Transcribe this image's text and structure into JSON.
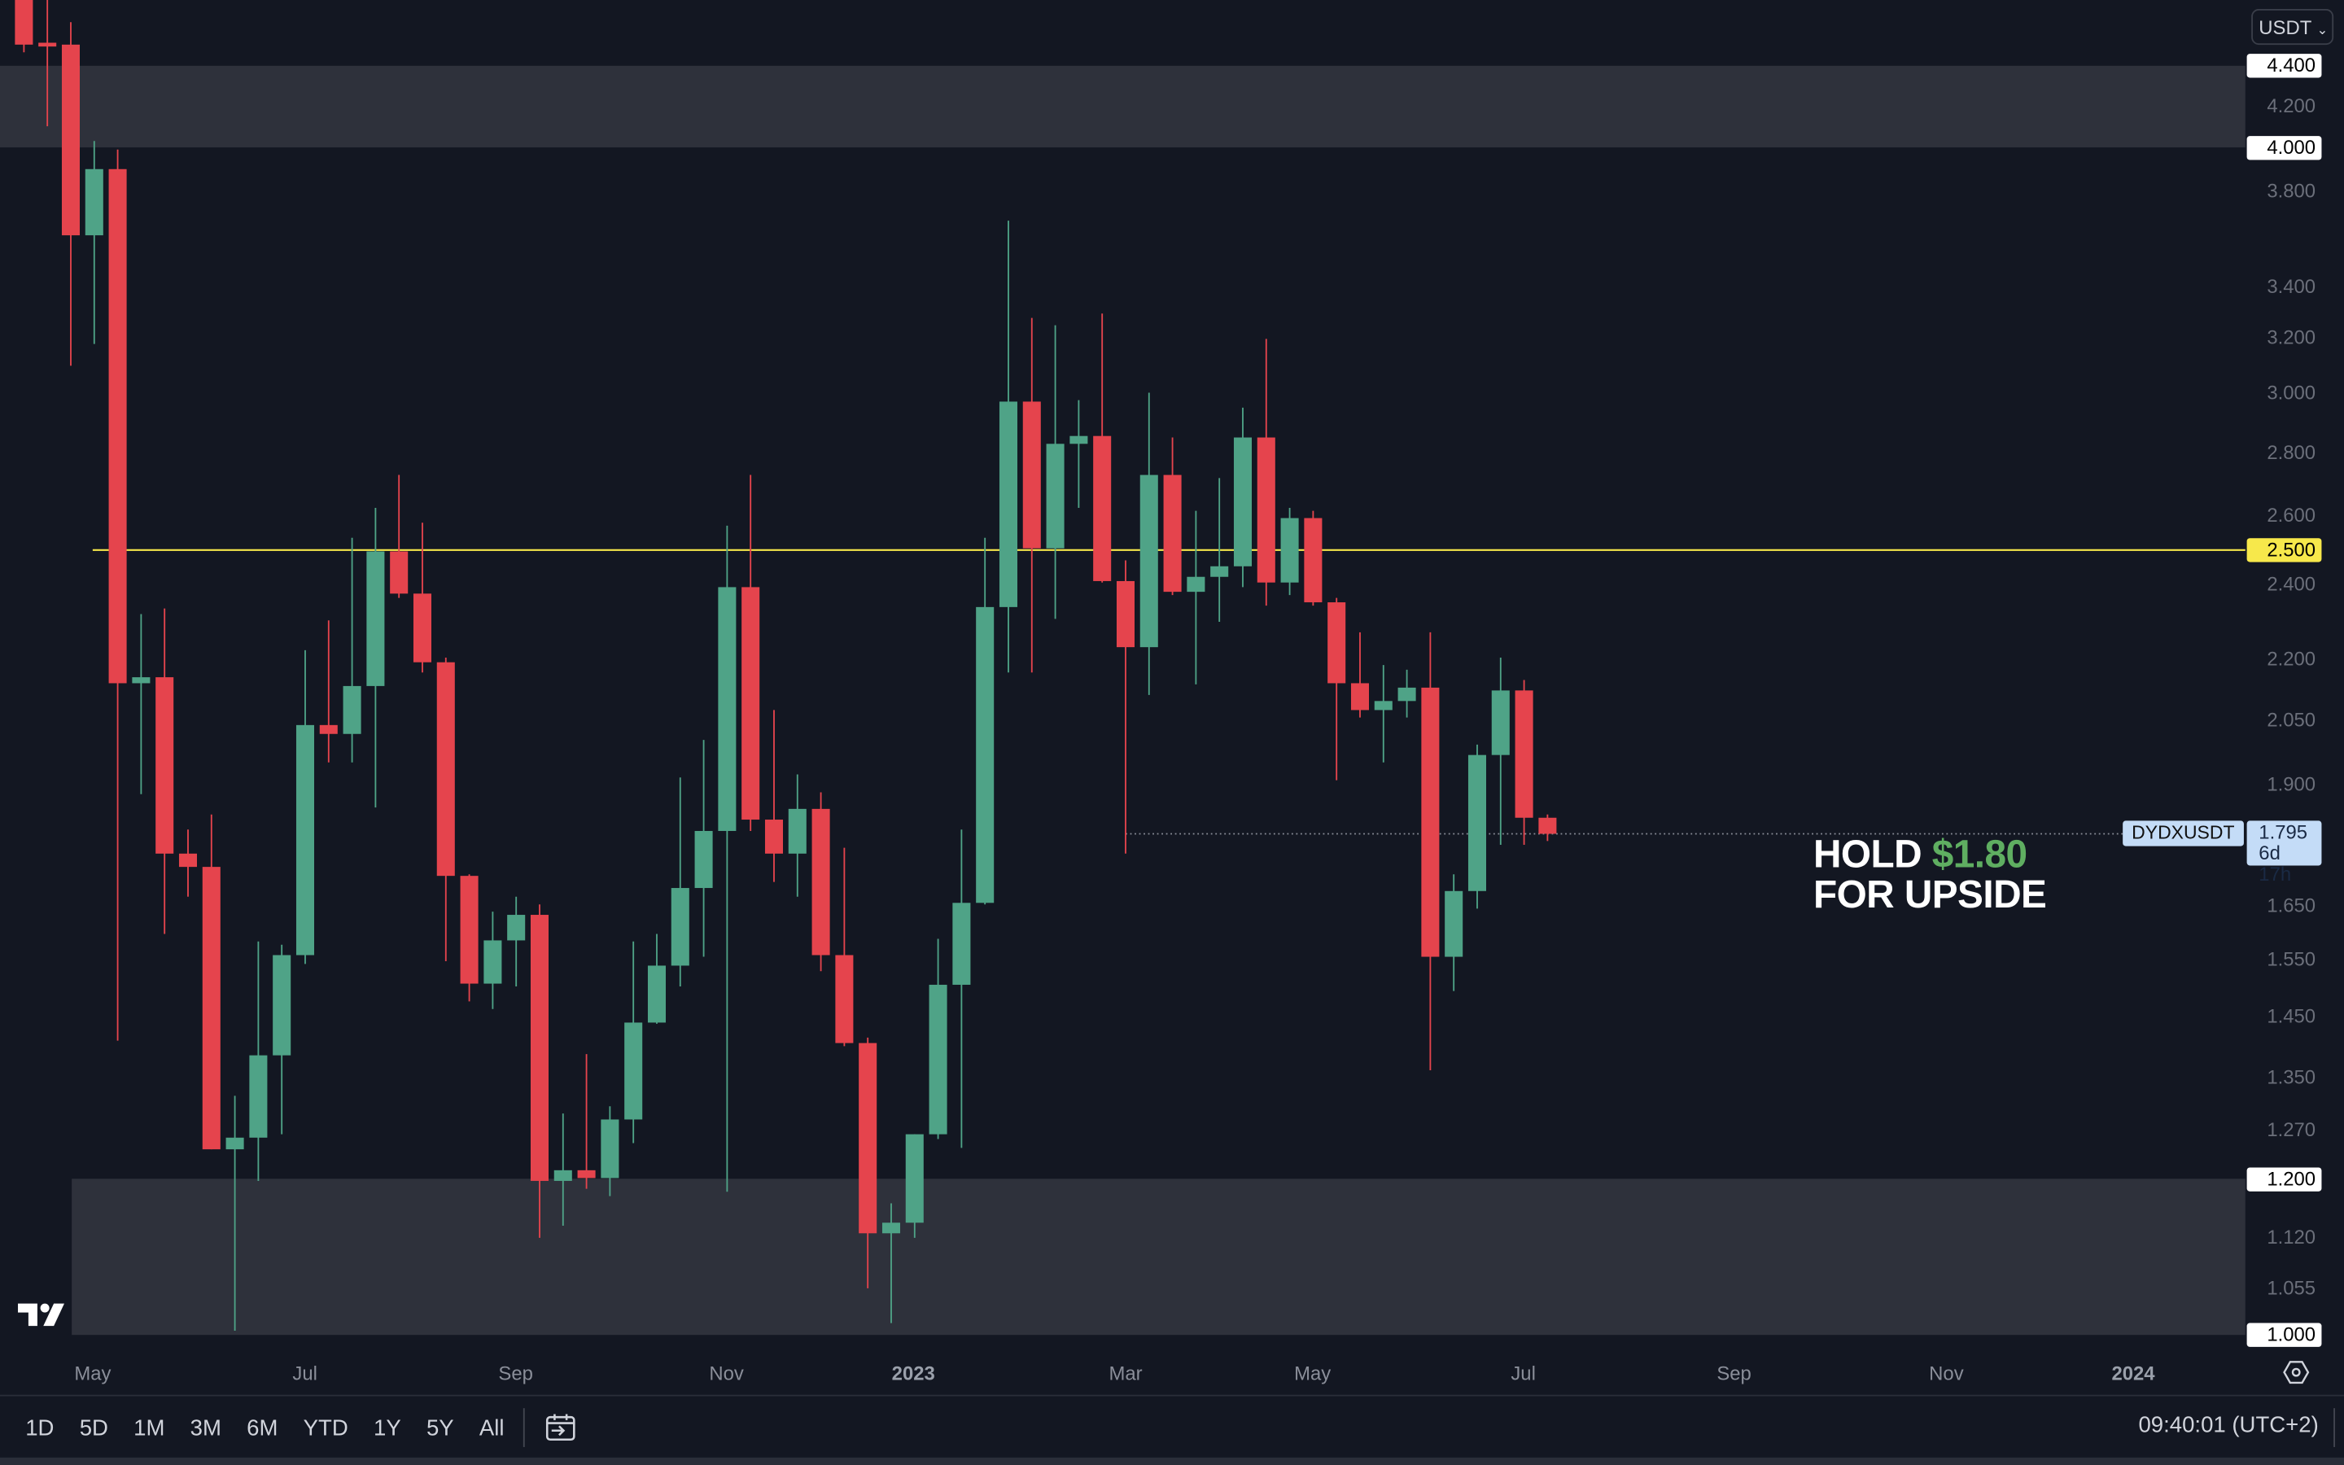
{
  "chart_data": {
    "type": "candlestick",
    "symbol": "DYDXUSDT",
    "currency": "USDT",
    "y_scale": "log",
    "ylim": [
      1.0,
      4.4
    ],
    "colors": {
      "up": "#4fa387",
      "down": "#e5444d",
      "zone": "#2e313b",
      "level": "#f7e84b"
    },
    "y_ticks": [
      {
        "label": "4.400",
        "value": 4.4,
        "style": "highlight"
      },
      {
        "label": "4.200",
        "value": 4.2
      },
      {
        "label": "4.000",
        "value": 4.0,
        "style": "highlight"
      },
      {
        "label": "3.800",
        "value": 3.8
      },
      {
        "label": "3.400",
        "value": 3.4
      },
      {
        "label": "3.200",
        "value": 3.2
      },
      {
        "label": "3.000",
        "value": 3.0
      },
      {
        "label": "2.800",
        "value": 2.8
      },
      {
        "label": "2.600",
        "value": 2.6
      },
      {
        "label": "2.500",
        "value": 2.5,
        "style": "level"
      },
      {
        "label": "2.400",
        "value": 2.4
      },
      {
        "label": "2.200",
        "value": 2.2
      },
      {
        "label": "2.050",
        "value": 2.05
      },
      {
        "label": "1.900",
        "value": 1.9
      },
      {
        "label": "1.650",
        "value": 1.65
      },
      {
        "label": "1.550",
        "value": 1.55
      },
      {
        "label": "1.450",
        "value": 1.45
      },
      {
        "label": "1.350",
        "value": 1.35
      },
      {
        "label": "1.270",
        "value": 1.27
      },
      {
        "label": "1.200",
        "value": 1.2,
        "style": "highlight"
      },
      {
        "label": "1.120",
        "value": 1.12
      },
      {
        "label": "1.055",
        "value": 1.055
      },
      {
        "label": "1.000",
        "value": 1.0,
        "style": "highlight"
      }
    ],
    "x_ticks": [
      {
        "label": "May"
      },
      {
        "label": "Jul"
      },
      {
        "label": "Sep"
      },
      {
        "label": "Nov"
      },
      {
        "label": "2023",
        "bold": true
      },
      {
        "label": "Mar"
      },
      {
        "label": "May"
      },
      {
        "label": "Jul"
      },
      {
        "label": "Sep"
      },
      {
        "label": "Nov"
      },
      {
        "label": "2024",
        "bold": true
      }
    ],
    "current_price": {
      "label": "1.795",
      "value": 1.795,
      "countdown": "6d 17h"
    },
    "level_line": 2.5,
    "zones": [
      {
        "from": 4.0,
        "to": 4.4
      },
      {
        "from": 1.0,
        "to": 1.2
      }
    ],
    "ohlc": [
      [
        4.76,
        4.76,
        4.47,
        4.51
      ],
      [
        4.52,
        4.76,
        4.1,
        4.5
      ],
      [
        4.51,
        4.63,
        3.1,
        3.61
      ],
      [
        3.61,
        4.03,
        3.18,
        3.9
      ],
      [
        3.9,
        3.99,
        1.41,
        2.14
      ],
      [
        2.14,
        2.32,
        1.88,
        2.155
      ],
      [
        2.155,
        2.335,
        1.597,
        1.754
      ],
      [
        1.754,
        1.804,
        1.668,
        1.727
      ],
      [
        1.727,
        1.836,
        1.242,
        1.242
      ],
      [
        1.242,
        1.322,
        1.005,
        1.259
      ],
      [
        1.259,
        1.583,
        1.197,
        1.386
      ],
      [
        1.386,
        1.577,
        1.264,
        1.558
      ],
      [
        1.558,
        2.224,
        1.542,
        2.038
      ],
      [
        2.038,
        2.303,
        1.951,
        2.017
      ],
      [
        2.017,
        2.536,
        1.951,
        2.133
      ],
      [
        2.133,
        2.626,
        1.851,
        2.496
      ],
      [
        2.496,
        2.729,
        2.364,
        2.376
      ],
      [
        2.376,
        2.581,
        2.167,
        2.193
      ],
      [
        2.193,
        2.205,
        1.547,
        1.709
      ],
      [
        1.709,
        1.712,
        1.476,
        1.507
      ],
      [
        1.507,
        1.639,
        1.463,
        1.585
      ],
      [
        1.585,
        1.668,
        1.502,
        1.633
      ],
      [
        1.633,
        1.653,
        1.12,
        1.197
      ],
      [
        1.197,
        1.295,
        1.136,
        1.212
      ],
      [
        1.212,
        1.388,
        1.186,
        1.201
      ],
      [
        1.201,
        1.306,
        1.176,
        1.286
      ],
      [
        1.286,
        1.583,
        1.251,
        1.44
      ],
      [
        1.44,
        1.597,
        1.438,
        1.539
      ],
      [
        1.539,
        1.917,
        1.502,
        1.685
      ],
      [
        1.685,
        2.003,
        1.555,
        1.801
      ],
      [
        1.801,
        2.572,
        1.182,
        2.394
      ],
      [
        2.394,
        2.729,
        1.801,
        1.825
      ],
      [
        1.825,
        2.074,
        1.697,
        1.754
      ],
      [
        1.754,
        1.924,
        1.668,
        1.848
      ],
      [
        1.848,
        1.884,
        1.529,
        1.558
      ],
      [
        1.558,
        1.766,
        1.401,
        1.406
      ],
      [
        1.406,
        1.415,
        1.056,
        1.126
      ],
      [
        1.126,
        1.166,
        1.014,
        1.14
      ],
      [
        1.14,
        1.264,
        1.12,
        1.264
      ],
      [
        1.264,
        1.588,
        1.257,
        1.505
      ],
      [
        1.505,
        1.804,
        1.244,
        1.656
      ],
      [
        1.656,
        2.536,
        1.653,
        2.339
      ],
      [
        2.339,
        3.672,
        2.167,
        2.973
      ],
      [
        2.973,
        3.278,
        2.167,
        2.505
      ],
      [
        2.505,
        3.25,
        2.307,
        2.83
      ],
      [
        2.83,
        2.978,
        2.626,
        2.856
      ],
      [
        2.856,
        3.295,
        2.407,
        2.411
      ],
      [
        2.411,
        2.47,
        1.754,
        2.232
      ],
      [
        2.232,
        3.004,
        2.111,
        2.729
      ],
      [
        2.729,
        2.851,
        2.372,
        2.381
      ],
      [
        2.381,
        2.617,
        2.137,
        2.423
      ],
      [
        2.423,
        2.719,
        2.299,
        2.453
      ],
      [
        2.453,
        2.952,
        2.394,
        2.851
      ],
      [
        2.851,
        3.199,
        2.343,
        2.407
      ],
      [
        2.407,
        2.626,
        2.372,
        2.595
      ],
      [
        2.595,
        2.617,
        2.343,
        2.352
      ],
      [
        2.352,
        2.364,
        1.911,
        2.14
      ],
      [
        2.14,
        2.271,
        2.056,
        2.074
      ],
      [
        2.074,
        2.186,
        1.951,
        2.096
      ],
      [
        2.096,
        2.174,
        2.056,
        2.129
      ],
      [
        2.129,
        2.271,
        1.362,
        1.555
      ],
      [
        1.555,
        1.712,
        1.494,
        1.679
      ],
      [
        1.679,
        1.992,
        1.645,
        1.968
      ],
      [
        1.968,
        2.205,
        1.772,
        2.122
      ],
      [
        2.122,
        2.148,
        1.772,
        1.829
      ],
      [
        1.829,
        1.836,
        1.78,
        1.795
      ]
    ],
    "annotation": {
      "line1": "HOLD ",
      "price": "$1.80",
      "line2": "FOR UPSIDE"
    }
  },
  "currency_selector": "USDT",
  "toolbar": {
    "timeframes": [
      "1D",
      "5D",
      "1M",
      "3M",
      "6M",
      "YTD",
      "1Y",
      "5Y",
      "All"
    ],
    "clock": "09:40:01 (UTC+2)"
  }
}
